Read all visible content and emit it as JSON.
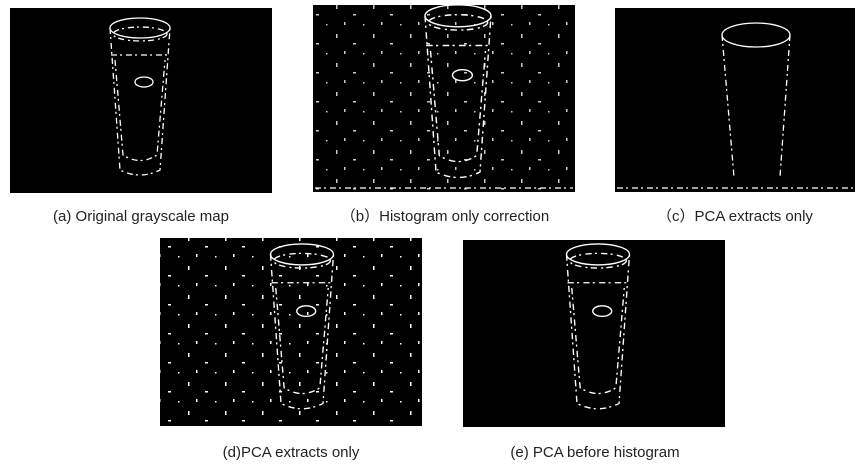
{
  "figures": [
    {
      "caption": "(a) Original grayscale map"
    },
    {
      "caption": "（b）Histogram only correction"
    },
    {
      "caption": "（c）PCA extracts only"
    },
    {
      "caption": "(d)PCA extracts only"
    },
    {
      "caption": "(e) PCA before histogram"
    }
  ]
}
